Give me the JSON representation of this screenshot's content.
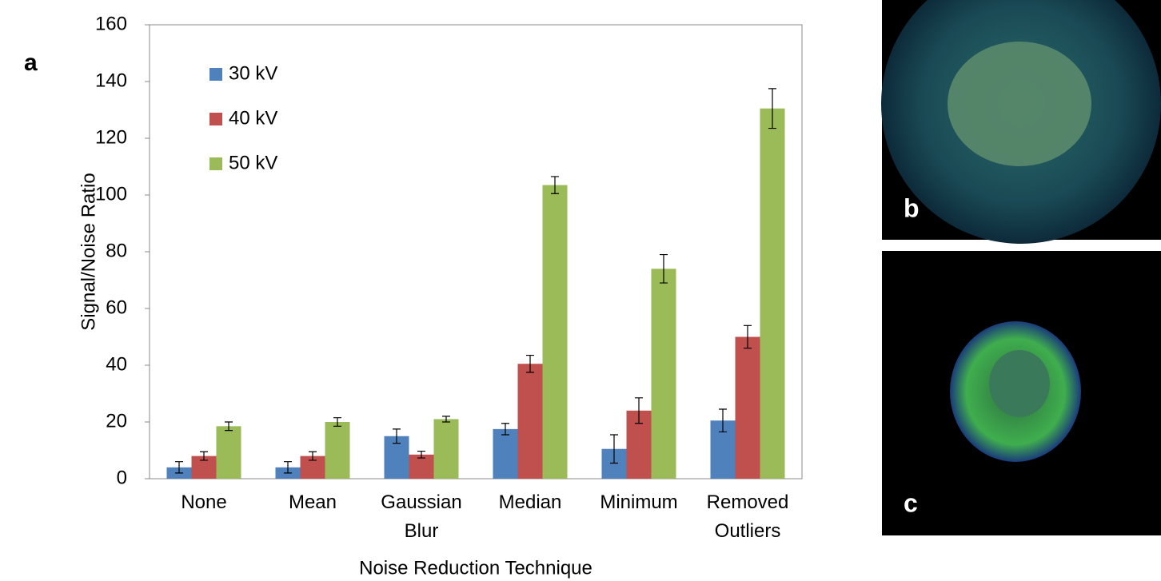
{
  "chart_data": {
    "type": "bar",
    "panel_label": "a",
    "xlabel": "Noise Reduction Technique",
    "ylabel": "Signal/Noise Ratio",
    "categories": [
      "None",
      "Mean",
      "Gaussian Blur",
      "Median",
      "Minimum",
      "Removed Outliers"
    ],
    "series": [
      {
        "name": "30 kV",
        "color": "#4f81bd",
        "values": [
          4,
          4,
          15,
          17.5,
          10.5,
          20.5
        ],
        "errors": [
          2,
          2,
          2.5,
          2,
          5,
          4
        ]
      },
      {
        "name": "40 kV",
        "color": "#c0504d",
        "values": [
          8,
          8,
          8.5,
          40.5,
          24,
          50
        ],
        "errors": [
          1.5,
          1.5,
          1.2,
          3,
          4.5,
          4
        ]
      },
      {
        "name": "50 kV",
        "color": "#9bbb59",
        "values": [
          18.5,
          20,
          21,
          103.5,
          74,
          130.5
        ],
        "errors": [
          1.5,
          1.5,
          1,
          3,
          5,
          7
        ]
      }
    ],
    "ylim": [
      0,
      160
    ],
    "yticks": [
      0,
      20,
      40,
      60,
      80,
      100,
      120,
      140,
      160
    ],
    "grid": false,
    "legend": "upper left"
  },
  "panels": [
    {
      "label": "b"
    },
    {
      "label": "c"
    }
  ]
}
